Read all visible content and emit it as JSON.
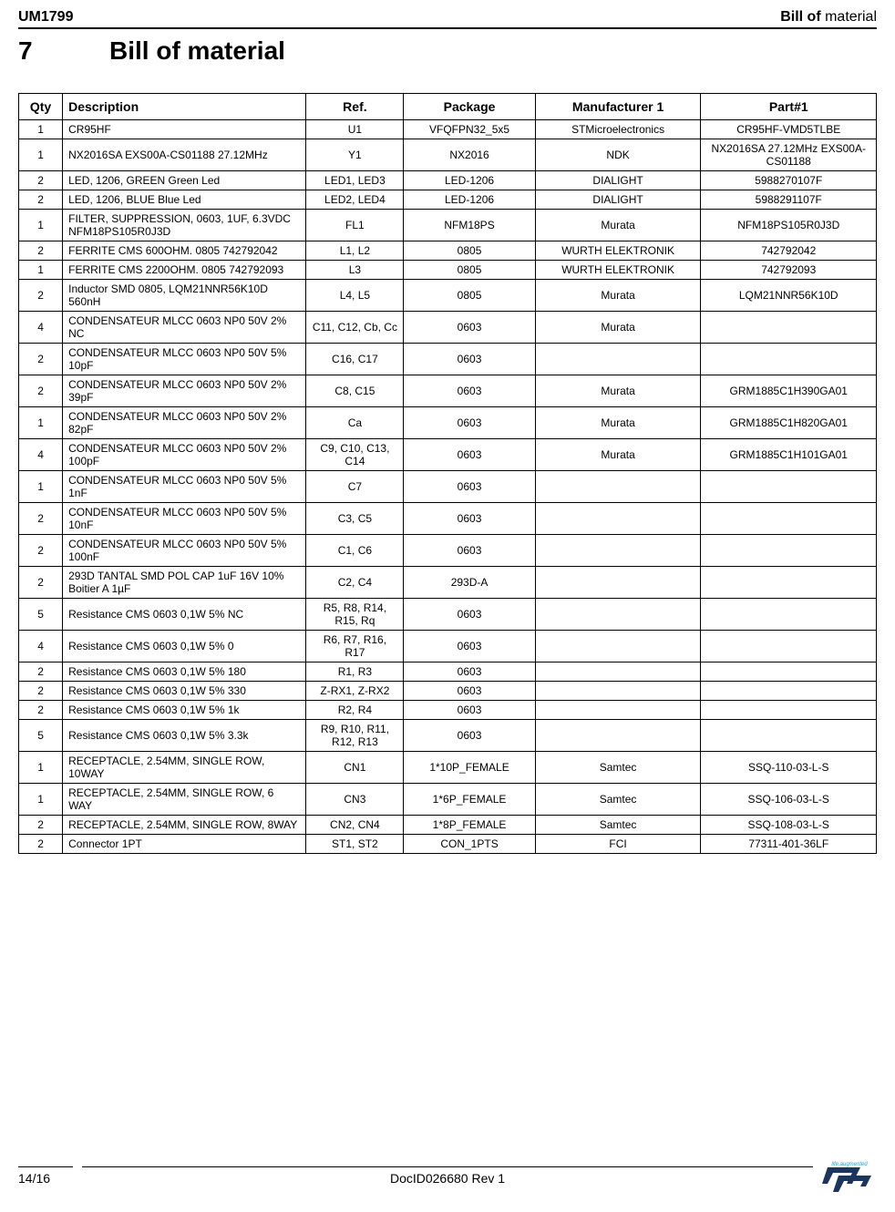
{
  "header": {
    "doc_code": "UM1799",
    "section_label_bold": "Bill of",
    "section_label_rest": " material"
  },
  "section": {
    "number": "7",
    "title": "Bill of material"
  },
  "table": {
    "columns": [
      "Qty",
      "Description",
      "Ref.",
      "Package",
      "Manufacturer 1",
      "Part#1"
    ],
    "rows": [
      [
        "1",
        "CR95HF",
        "U1",
        "VFQFPN32_5x5",
        "STMicroelectronics",
        "CR95HF-VMD5TLBE"
      ],
      [
        "1",
        "NX2016SA EXS00A-CS01188  27.12MHz",
        "Y1",
        "NX2016",
        "NDK",
        "NX2016SA 27.12MHz EXS00A-CS01188"
      ],
      [
        "2",
        "LED, 1206, GREEN  Green Led",
        "LED1, LED3",
        "LED-1206",
        "DIALIGHT",
        "5988270107F"
      ],
      [
        "2",
        "LED, 1206, BLUE  Blue Led",
        "LED2, LED4",
        "LED-1206",
        "DIALIGHT",
        "5988291107F"
      ],
      [
        "1",
        "FILTER, SUPPRESSION, 0603, 1UF, 6.3VDC  NFM18PS105R0J3D",
        "FL1",
        "NFM18PS",
        "Murata",
        "NFM18PS105R0J3D"
      ],
      [
        "2",
        "FERRITE CMS 600OHM. 0805  742792042",
        "L1, L2",
        "0805",
        "WURTH ELEKTRONIK",
        "742792042"
      ],
      [
        "1",
        "FERRITE CMS 2200OHM. 0805  742792093",
        "L3",
        "0805",
        "WURTH ELEKTRONIK",
        "742792093"
      ],
      [
        "2",
        "Inductor SMD 0805, LQM21NNR56K10D  560nH",
        "L4, L5",
        "0805",
        "Murata",
        "LQM21NNR56K10D"
      ],
      [
        "4",
        "CONDENSATEUR MLCC 0603 NP0 50V 2%  NC",
        "C11, C12, Cb, Cc",
        "0603",
        "Murata",
        ""
      ],
      [
        "2",
        "CONDENSATEUR MLCC 0603 NP0 50V 5%  10pF",
        "C16, C17",
        "0603",
        "",
        ""
      ],
      [
        "2",
        "CONDENSATEUR MLCC 0603 NP0 50V 2%  39pF",
        "C8, C15",
        "0603",
        "Murata",
        "GRM1885C1H390GA01"
      ],
      [
        "1",
        "CONDENSATEUR MLCC 0603 NP0 50V 2%  82pF",
        "Ca",
        "0603",
        "Murata",
        "GRM1885C1H820GA01"
      ],
      [
        "4",
        "CONDENSATEUR MLCC 0603 NP0 50V 2%  100pF",
        "C9, C10, C13, C14",
        "0603",
        "Murata",
        "GRM1885C1H101GA01"
      ],
      [
        "1",
        "CONDENSATEUR MLCC 0603 NP0 50V 5%  1nF",
        "C7",
        "0603",
        "",
        ""
      ],
      [
        "2",
        "CONDENSATEUR MLCC 0603 NP0 50V 5%  10nF",
        "C3, C5",
        "0603",
        "",
        ""
      ],
      [
        "2",
        "CONDENSATEUR MLCC 0603 NP0 50V 5%  100nF",
        "C1, C6",
        "0603",
        "",
        ""
      ],
      [
        "2",
        "293D TANTAL SMD POL CAP 1uF 16V 10% Boitier A  1µF",
        "C2, C4",
        "293D-A",
        "",
        ""
      ],
      [
        "5",
        "Resistance CMS 0603 0,1W 5%  NC",
        "R5, R8, R14, R15, Rq",
        "0603",
        "",
        ""
      ],
      [
        "4",
        "Resistance CMS 0603 0,1W 5%  0",
        "R6, R7, R16, R17",
        "0603",
        "",
        ""
      ],
      [
        "2",
        "Resistance CMS 0603 0,1W 5%  180",
        "R1, R3",
        "0603",
        "",
        ""
      ],
      [
        "2",
        "Resistance CMS 0603 0,1W 5%  330",
        "Z-RX1, Z-RX2",
        "0603",
        "",
        ""
      ],
      [
        "2",
        "Resistance CMS 0603 0,1W 5%  1k",
        "R2, R4",
        "0603",
        "",
        ""
      ],
      [
        "5",
        "Resistance CMS 0603 0,1W 5%  3.3k",
        "R9, R10, R11, R12, R13",
        "0603",
        "",
        ""
      ],
      [
        "1",
        "RECEPTACLE, 2.54MM, SINGLE ROW, 10WAY",
        "CN1",
        "1*10P_FEMALE",
        "Samtec",
        "SSQ-110-03-L-S"
      ],
      [
        "1",
        "RECEPTACLE, 2.54MM, SINGLE ROW, 6 WAY",
        "CN3",
        "1*6P_FEMALE",
        "Samtec",
        "SSQ-106-03-L-S"
      ],
      [
        "2",
        "RECEPTACLE, 2.54MM, SINGLE ROW, 8WAY",
        "CN2, CN4",
        "1*8P_FEMALE",
        "Samtec",
        "SSQ-108-03-L-S"
      ],
      [
        "2",
        "Connector 1PT",
        "ST1, ST2",
        "CON_1PTS",
        "FCI",
        "77311-401-36LF"
      ]
    ]
  },
  "footer": {
    "page": "14/16",
    "doc_id": "DocID026680 Rev 1"
  }
}
